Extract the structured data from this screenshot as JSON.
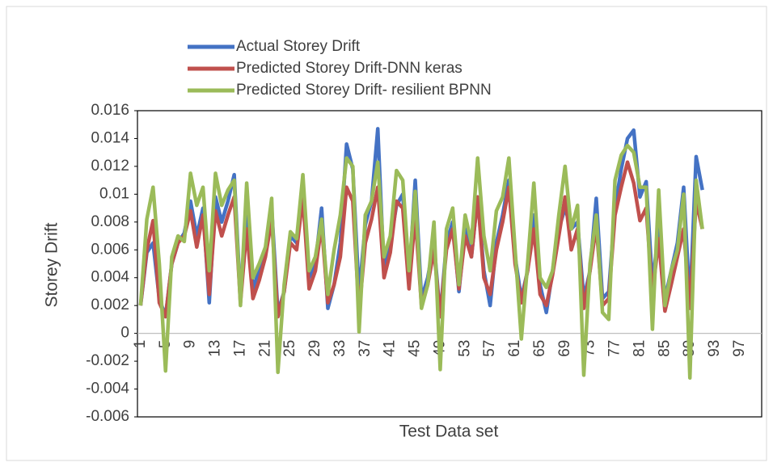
{
  "chart_data": {
    "type": "line",
    "x_label": "Test Data set",
    "y_label": "Storey Drift",
    "categories": [
      1,
      null,
      null,
      null,
      5,
      null,
      null,
      null,
      9,
      null,
      null,
      null,
      13,
      null,
      null,
      null,
      17,
      null,
      null,
      null,
      21,
      null,
      null,
      null,
      25,
      null,
      null,
      null,
      29,
      null,
      null,
      null,
      33,
      null,
      null,
      null,
      37,
      null,
      null,
      null,
      41,
      null,
      null,
      null,
      45,
      null,
      null,
      null,
      49,
      null,
      null,
      null,
      53,
      null,
      null,
      null,
      57,
      null,
      null,
      null,
      61,
      null,
      null,
      null,
      65,
      null,
      null,
      null,
      69,
      null,
      null,
      null,
      73,
      null,
      null,
      null,
      77,
      null,
      null,
      null,
      81,
      null,
      null,
      null,
      85,
      null,
      null,
      null,
      89,
      null,
      null,
      null,
      93,
      null,
      null,
      null,
      97,
      null,
      null,
      null
    ],
    "series": [
      {
        "name": "Actual Storey Drift",
        "color": "#4472c4",
        "values": [
          0.002,
          0.0058,
          0.0065,
          0.0025,
          0.0012,
          0.005,
          0.0065,
          0.0072,
          0.0095,
          0.007,
          0.009,
          0.0022,
          0.0098,
          0.008,
          0.0095,
          0.0114,
          0.0025,
          0.0085,
          0.0032,
          0.0045,
          0.006,
          0.009,
          0.0015,
          0.003,
          0.007,
          0.0065,
          0.0105,
          0.004,
          0.005,
          0.009,
          0.0018,
          0.0035,
          0.0065,
          0.0136,
          0.0118,
          0.0028,
          0.0078,
          0.0095,
          0.0147,
          0.0045,
          0.0065,
          0.0092,
          0.01,
          0.0038,
          0.011,
          0.0025,
          0.004,
          0.0065,
          0.0012,
          0.0065,
          0.008,
          0.003,
          0.0075,
          0.0055,
          0.0098,
          0.0045,
          0.002,
          0.0065,
          0.0085,
          0.011,
          0.0055,
          0.0025,
          0.0045,
          0.0085,
          0.0035,
          0.0015,
          0.0045,
          0.0075,
          0.009,
          0.0075,
          0.008,
          0.0025,
          0.0045,
          0.0097,
          0.0025,
          0.003,
          0.009,
          0.0118,
          0.014,
          0.0146,
          0.0098,
          0.0109,
          0.0035,
          0.0075,
          0.0025,
          0.0045,
          0.0065,
          0.0105,
          0.002,
          0.0127,
          0.0103,
          null,
          null,
          null,
          null,
          null,
          null,
          null,
          null,
          null
        ]
      },
      {
        "name": "Predicted Storey Drift-DNN keras",
        "color": "#c0504d",
        "values": [
          0.002,
          0.006,
          0.0081,
          0.0022,
          0.0012,
          0.005,
          0.0065,
          0.007,
          0.0088,
          0.0062,
          0.0085,
          0.0028,
          0.0088,
          0.007,
          0.0085,
          0.0098,
          0.0022,
          0.0075,
          0.0025,
          0.0038,
          0.0055,
          0.0082,
          0.0012,
          0.003,
          0.0065,
          0.006,
          0.0098,
          0.0032,
          0.0045,
          0.0078,
          0.0022,
          0.0035,
          0.0055,
          0.0105,
          0.0095,
          0.0015,
          0.0065,
          0.0082,
          0.0105,
          0.004,
          0.0058,
          0.0095,
          0.009,
          0.0032,
          0.0085,
          0.002,
          0.0035,
          0.006,
          0.0012,
          0.006,
          0.0075,
          0.0032,
          0.007,
          0.0055,
          0.0098,
          0.004,
          0.0028,
          0.006,
          0.008,
          0.0105,
          0.005,
          0.0022,
          0.0045,
          0.0075,
          0.0028,
          0.002,
          0.0042,
          0.007,
          0.0098,
          0.006,
          0.0075,
          0.0018,
          0.0045,
          0.0078,
          0.002,
          0.0025,
          0.0085,
          0.0105,
          0.0123,
          0.0108,
          0.0081,
          0.009,
          0.0028,
          0.0068,
          0.0016,
          0.0035,
          0.0055,
          0.0075,
          0.0018,
          0.0095,
          0.0075,
          null,
          null,
          null,
          null,
          null,
          null,
          null,
          null,
          null
        ]
      },
      {
        "name": "Predicted Storey Drift- resilient BPNN",
        "color": "#9bbb59",
        "values": [
          0.002,
          0.0082,
          0.0105,
          0.005,
          -0.0027,
          0.0055,
          0.007,
          0.0066,
          0.0115,
          0.0092,
          0.0105,
          0.0045,
          0.0115,
          0.0092,
          0.0103,
          0.011,
          0.002,
          0.0108,
          0.004,
          0.005,
          0.0062,
          0.0097,
          -0.0028,
          0.0035,
          0.0073,
          0.0068,
          0.0114,
          0.0045,
          0.0055,
          0.0082,
          0.0028,
          0.006,
          0.0085,
          0.0126,
          0.012,
          0.0001,
          0.0085,
          0.0095,
          0.0123,
          0.0055,
          0.007,
          0.0117,
          0.011,
          0.0045,
          0.0102,
          0.0018,
          0.0035,
          0.008,
          -0.0026,
          0.0075,
          0.009,
          0.0035,
          0.0085,
          0.0065,
          0.0126,
          0.007,
          0.0045,
          0.0088,
          0.0098,
          0.0126,
          0.006,
          -0.0004,
          0.005,
          0.0108,
          0.004,
          0.0033,
          0.0045,
          0.0085,
          0.012,
          0.0075,
          0.0092,
          -0.003,
          0.005,
          0.0085,
          0.0015,
          0.001,
          0.011,
          0.0128,
          0.0135,
          0.013,
          0.0105,
          0.0105,
          0.0003,
          0.0103,
          0.002,
          0.0045,
          0.006,
          0.01,
          -0.0032,
          0.011,
          0.0075,
          null,
          null,
          null,
          null,
          null,
          null,
          null,
          null,
          null
        ]
      }
    ],
    "ylim": [
      -0.006,
      0.016
    ],
    "yticks": [
      -0.006,
      -0.004,
      -0.002,
      0,
      0.002,
      0.004,
      0.006,
      0.008,
      0.01,
      0.012,
      0.014,
      0.016
    ],
    "grid": false,
    "legend": "top-left"
  }
}
